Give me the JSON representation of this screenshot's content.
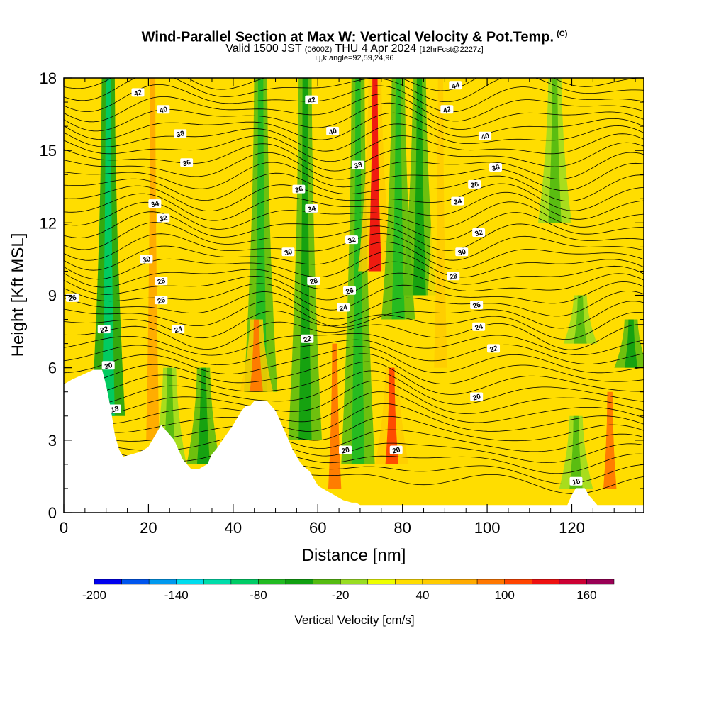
{
  "title": {
    "main": "Wind-Parallel Section at Max W: Vertical Velocity & Pot.Temp.",
    "copyright": "(C)",
    "valid_prefix": "Valid 1500 JST",
    "valid_zulu": "(0600Z)",
    "valid_date": "THU 4 Apr 2024",
    "forecast": "[12hrFcst@2227z]",
    "params": "i,j,k,angle=92,59,24,96"
  },
  "chart_data": {
    "type": "heatmap",
    "xlabel": "Distance [nm]",
    "ylabel": "Height [Kft MSL]",
    "xlim": [
      0,
      137
    ],
    "ylim": [
      0,
      18
    ],
    "x_ticks": [
      "0",
      "20",
      "40",
      "60",
      "80",
      "100",
      "120"
    ],
    "x_tick_values": [
      0,
      20,
      40,
      60,
      80,
      100,
      120
    ],
    "y_ticks": [
      "0",
      "3",
      "6",
      "9",
      "12",
      "15",
      "18"
    ],
    "y_tick_values": [
      0,
      3,
      6,
      9,
      12,
      15,
      18
    ],
    "grid": false,
    "colorbar": {
      "title": "Vertical Velocity [cm/s]",
      "labels": [
        "-200",
        "-140",
        "-80",
        "-20",
        "40",
        "100",
        "160"
      ],
      "label_values": [
        -200,
        -140,
        -80,
        -20,
        40,
        100,
        160
      ],
      "boundaries": [
        -200,
        -180,
        -160,
        -140,
        -120,
        -100,
        -80,
        -60,
        -40,
        -20,
        0,
        20,
        40,
        60,
        80,
        100,
        120,
        140,
        160,
        180
      ],
      "colors": [
        "#0000ee",
        "#0055ee",
        "#0099ee",
        "#00ddee",
        "#00ddaa",
        "#00cc66",
        "#22bb22",
        "#11a011",
        "#55bb11",
        "#99dd22",
        "#eeff00",
        "#ffdd00",
        "#ffcc00",
        "#ffaa00",
        "#ff7700",
        "#ff4400",
        "#ee1111",
        "#cc0033",
        "#990055"
      ]
    },
    "background_color": "#ffdd00",
    "updraft_columns": [
      {
        "x": 10.5,
        "y0": 4,
        "y1": 18,
        "w": -90
      },
      {
        "x": 21,
        "y0": 3,
        "y1": 18,
        "w": 70
      },
      {
        "x": 25,
        "y0": 2,
        "y1": 6,
        "w": -40
      },
      {
        "x": 33,
        "y0": 2,
        "y1": 6,
        "w": -60
      },
      {
        "x": 46.5,
        "y0": 5,
        "y1": 18,
        "w": -70
      },
      {
        "x": 45.5,
        "y0": 5,
        "y1": 8,
        "w": 90
      },
      {
        "x": 57,
        "y0": 3,
        "y1": 18,
        "w": -50
      },
      {
        "x": 64,
        "y0": 1,
        "y1": 7,
        "w": 80
      },
      {
        "x": 69.5,
        "y0": 2,
        "y1": 18,
        "w": -80
      },
      {
        "x": 73.5,
        "y0": 10,
        "y1": 18,
        "w": 130
      },
      {
        "x": 77.5,
        "y0": 2,
        "y1": 6,
        "w": 110
      },
      {
        "x": 79,
        "y0": 8,
        "y1": 18,
        "w": -70
      },
      {
        "x": 84,
        "y0": 9,
        "y1": 18,
        "w": -60
      },
      {
        "x": 89,
        "y0": 6,
        "y1": 18,
        "w": 50
      },
      {
        "x": 116,
        "y0": 12,
        "y1": 18,
        "w": -30
      },
      {
        "x": 121,
        "y0": 1,
        "y1": 4,
        "w": -30
      },
      {
        "x": 129,
        "y0": 1,
        "y1": 5,
        "w": 80
      },
      {
        "x": 134,
        "y0": 6,
        "y1": 8,
        "w": -50
      },
      {
        "x": 122,
        "y0": 7,
        "y1": 9,
        "w": -30
      }
    ],
    "terrain_ft_msl_kft": {
      "x": [
        0,
        2,
        7,
        9,
        10,
        11,
        12,
        13,
        14,
        18,
        20,
        22,
        23,
        25,
        26,
        28,
        30,
        32,
        34,
        35,
        36,
        38,
        40,
        42,
        43,
        44,
        45,
        48,
        50,
        52,
        54,
        56,
        58,
        60,
        62,
        64,
        66,
        68,
        69,
        70,
        72,
        74,
        76,
        78,
        80,
        84,
        88,
        92,
        96,
        100,
        104,
        108,
        112,
        116,
        119,
        120,
        121,
        123,
        124,
        125,
        126,
        130,
        134,
        137
      ],
      "y": [
        5.3,
        5.5,
        5.9,
        5.9,
        5.2,
        4.3,
        3.2,
        2.6,
        2.3,
        2.5,
        2.7,
        3.3,
        3.6,
        3.2,
        3.0,
        2.2,
        1.8,
        1.8,
        2.0,
        2.4,
        2.6,
        3.1,
        3.6,
        4.2,
        4.4,
        4.4,
        4.6,
        4.6,
        4.2,
        3.4,
        2.6,
        2.0,
        1.7,
        1.1,
        0.9,
        0.7,
        0.5,
        0.4,
        0.4,
        0.3,
        0.3,
        0.3,
        0.3,
        0.3,
        0.3,
        0.3,
        0.3,
        0.3,
        0.3,
        0.3,
        0.3,
        0.3,
        0.3,
        0.3,
        0.3,
        0.7,
        1.0,
        1.0,
        0.7,
        0.5,
        0.3,
        0.3,
        0.3,
        0.3
      ]
    },
    "theta_contours": {
      "labels": [
        {
          "text": "18",
          "x": 12,
          "y": 4.3
        },
        {
          "text": "18",
          "x": 121,
          "y": 1.3
        },
        {
          "text": "20",
          "x": 10.5,
          "y": 6.1
        },
        {
          "text": "20",
          "x": 66.5,
          "y": 2.6
        },
        {
          "text": "20",
          "x": 78.5,
          "y": 2.6
        },
        {
          "text": "20",
          "x": 97.5,
          "y": 4.8
        },
        {
          "text": "22",
          "x": 9.5,
          "y": 7.6
        },
        {
          "text": "22",
          "x": 57.5,
          "y": 7.2
        },
        {
          "text": "22",
          "x": 101.5,
          "y": 6.8
        },
        {
          "text": "24",
          "x": 27,
          "y": 7.6
        },
        {
          "text": "24",
          "x": 66,
          "y": 8.5
        },
        {
          "text": "24",
          "x": 98,
          "y": 7.7
        },
        {
          "text": "26",
          "x": 2,
          "y": 8.9
        },
        {
          "text": "26",
          "x": 23,
          "y": 8.8
        },
        {
          "text": "26",
          "x": 67.5,
          "y": 9.2
        },
        {
          "text": "26",
          "x": 97.5,
          "y": 8.6
        },
        {
          "text": "28",
          "x": 23,
          "y": 9.6
        },
        {
          "text": "28",
          "x": 59,
          "y": 9.6
        },
        {
          "text": "28",
          "x": 92,
          "y": 9.8
        },
        {
          "text": "30",
          "x": 19.5,
          "y": 10.5
        },
        {
          "text": "30",
          "x": 53,
          "y": 10.8
        },
        {
          "text": "30",
          "x": 94,
          "y": 10.8
        },
        {
          "text": "32",
          "x": 23.5,
          "y": 12.2
        },
        {
          "text": "32",
          "x": 68,
          "y": 11.3
        },
        {
          "text": "32",
          "x": 98,
          "y": 11.6
        },
        {
          "text": "34",
          "x": 21.5,
          "y": 12.8
        },
        {
          "text": "34",
          "x": 58.5,
          "y": 12.6
        },
        {
          "text": "34",
          "x": 93,
          "y": 12.9
        },
        {
          "text": "36",
          "x": 29,
          "y": 14.5
        },
        {
          "text": "36",
          "x": 55.5,
          "y": 13.4
        },
        {
          "text": "36",
          "x": 97,
          "y": 13.6
        },
        {
          "text": "38",
          "x": 27.5,
          "y": 15.7
        },
        {
          "text": "38",
          "x": 69.5,
          "y": 14.4
        },
        {
          "text": "38",
          "x": 102,
          "y": 14.3
        },
        {
          "text": "40",
          "x": 23.5,
          "y": 16.7
        },
        {
          "text": "40",
          "x": 63.5,
          "y": 15.8
        },
        {
          "text": "40",
          "x": 99.5,
          "y": 15.6
        },
        {
          "text": "42",
          "x": 17.5,
          "y": 17.4
        },
        {
          "text": "42",
          "x": 58.5,
          "y": 17.1
        },
        {
          "text": "42",
          "x": 90.5,
          "y": 16.7
        },
        {
          "text": "44",
          "x": 92.5,
          "y": 17.7
        }
      ]
    }
  }
}
